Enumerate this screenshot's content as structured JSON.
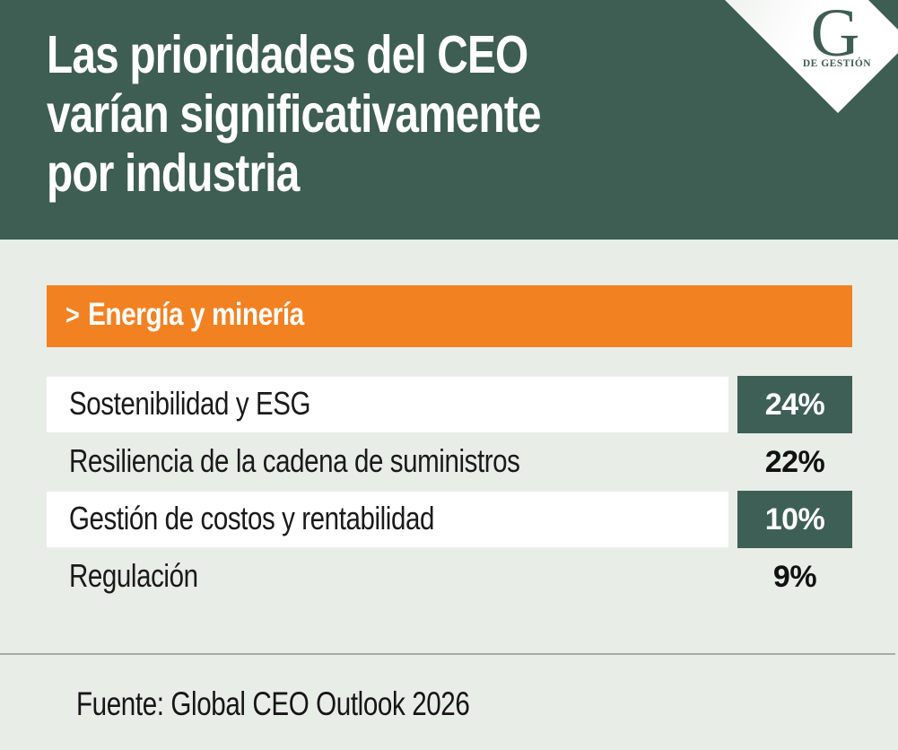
{
  "colors": {
    "background": "#e9ede7",
    "header_teal": "#3e5d53",
    "badge_teal": "#3e5f55",
    "banner_orange": "#f28122",
    "divider_gray": "#a6aca6",
    "text_dark": "#161616",
    "white": "#ffffff"
  },
  "header": {
    "title_lines": [
      "Las prioridades del CEO",
      "varían significativamente",
      "por industria"
    ]
  },
  "logo": {
    "letter": "G",
    "wordmark": "DE GESTIÓN"
  },
  "banner": {
    "chevron": ">",
    "label": "Energía y minería"
  },
  "rows": [
    {
      "label": "Sostenibilidad y ESG",
      "value": "24%",
      "badge": true
    },
    {
      "label": "Resiliencia de la cadena de suministros",
      "value": "22%",
      "badge": false
    },
    {
      "label": "Gestión de costos y rentabilidad",
      "value": "10%",
      "badge": true
    },
    {
      "label": "Regulación",
      "value": "9%",
      "badge": false
    }
  ],
  "footer": {
    "source": "Fuente: Global CEO Outlook 2026"
  },
  "chart_data": {
    "type": "bar",
    "title": "Las prioridades del CEO varían significativamente por industria",
    "group_label": "Energía y minería",
    "categories": [
      "Sostenibilidad y ESG",
      "Resiliencia de la cadena de suministros",
      "Gestión de costos y rentabilidad",
      "Regulación"
    ],
    "values": [
      24,
      22,
      10,
      9
    ],
    "unit": "%",
    "highlighted_rows": [
      0,
      2
    ],
    "legend_position": "none",
    "grid": false,
    "source": "Fuente: Global CEO Outlook 2026"
  }
}
